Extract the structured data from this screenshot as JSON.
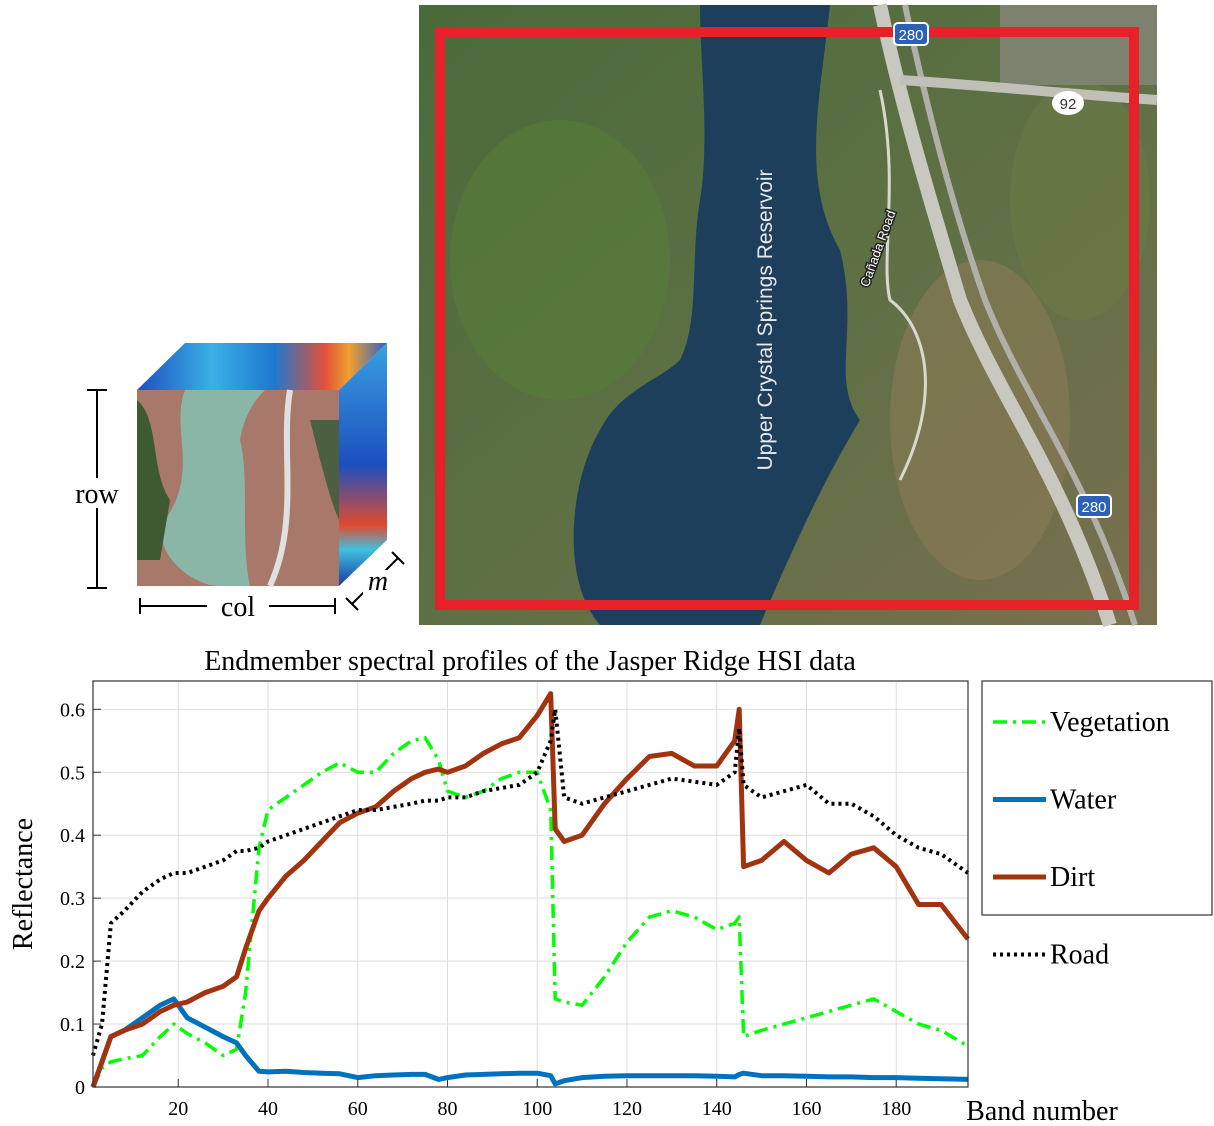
{
  "hsi_cube": {
    "row_label": "row",
    "col_label": "col",
    "band_label": "m"
  },
  "map": {
    "reservoir_label": "Upper Crystal Springs Reservoir",
    "road_label": "Cañada Road",
    "highway_labels": [
      "280",
      "92",
      "280"
    ]
  },
  "chart_data": {
    "type": "line",
    "title": "Endmember spectral profiles of the Jasper Ridge HSI data",
    "x_label": "Band number",
    "y_label": "Reflectance",
    "x": [
      1,
      3,
      5,
      8,
      12,
      16,
      19,
      22,
      26,
      30,
      33,
      35,
      38,
      40,
      44,
      48,
      52,
      56,
      60,
      64,
      68,
      72,
      75,
      78,
      80,
      84,
      88,
      92,
      96,
      100,
      103,
      104,
      106,
      110,
      115,
      120,
      125,
      130,
      135,
      140,
      144,
      145,
      146,
      150,
      155,
      160,
      165,
      170,
      175,
      180,
      185,
      190,
      196
    ],
    "series": [
      {
        "name": "Vegetation",
        "color": "#00ff00",
        "linestyle": "dashdot",
        "values": [
          0.0,
          0.03,
          0.04,
          0.045,
          0.05,
          0.08,
          0.1,
          0.085,
          0.07,
          0.05,
          0.06,
          0.15,
          0.38,
          0.44,
          0.46,
          0.48,
          0.5,
          0.515,
          0.5,
          0.5,
          0.53,
          0.55,
          0.555,
          0.52,
          0.47,
          0.46,
          0.47,
          0.49,
          0.5,
          0.5,
          0.44,
          0.14,
          0.135,
          0.13,
          0.175,
          0.23,
          0.27,
          0.28,
          0.27,
          0.25,
          0.26,
          0.27,
          0.08,
          0.09,
          0.1,
          0.11,
          0.12,
          0.13,
          0.14,
          0.12,
          0.1,
          0.09,
          0.065
        ]
      },
      {
        "name": "Water",
        "color": "#0072bd",
        "linestyle": "solid",
        "values": [
          0.0,
          0.04,
          0.08,
          0.09,
          0.11,
          0.13,
          0.14,
          0.11,
          0.095,
          0.08,
          0.07,
          0.05,
          0.025,
          0.024,
          0.025,
          0.023,
          0.022,
          0.021,
          0.015,
          0.018,
          0.019,
          0.02,
          0.02,
          0.012,
          0.015,
          0.019,
          0.02,
          0.021,
          0.022,
          0.022,
          0.018,
          0.005,
          0.01,
          0.015,
          0.017,
          0.018,
          0.018,
          0.018,
          0.018,
          0.017,
          0.016,
          0.02,
          0.022,
          0.018,
          0.018,
          0.017,
          0.016,
          0.016,
          0.015,
          0.015,
          0.014,
          0.013,
          0.012
        ]
      },
      {
        "name": "Dirt",
        "color": "#a2330f",
        "linestyle": "solid",
        "values": [
          0.0,
          0.04,
          0.08,
          0.09,
          0.1,
          0.12,
          0.13,
          0.135,
          0.15,
          0.16,
          0.175,
          0.22,
          0.28,
          0.3,
          0.335,
          0.36,
          0.39,
          0.42,
          0.435,
          0.445,
          0.47,
          0.49,
          0.5,
          0.505,
          0.5,
          0.51,
          0.53,
          0.545,
          0.555,
          0.59,
          0.625,
          0.41,
          0.39,
          0.4,
          0.45,
          0.49,
          0.525,
          0.53,
          0.51,
          0.51,
          0.55,
          0.6,
          0.35,
          0.36,
          0.39,
          0.36,
          0.34,
          0.37,
          0.38,
          0.35,
          0.29,
          0.29,
          0.235
        ]
      },
      {
        "name": "Road",
        "color": "#000000",
        "linestyle": "dotted",
        "values": [
          0.05,
          0.1,
          0.26,
          0.28,
          0.31,
          0.33,
          0.34,
          0.34,
          0.35,
          0.36,
          0.375,
          0.375,
          0.38,
          0.39,
          0.4,
          0.41,
          0.42,
          0.43,
          0.44,
          0.44,
          0.445,
          0.45,
          0.455,
          0.455,
          0.46,
          0.46,
          0.47,
          0.475,
          0.48,
          0.5,
          0.55,
          0.6,
          0.46,
          0.45,
          0.46,
          0.47,
          0.48,
          0.49,
          0.485,
          0.48,
          0.5,
          0.57,
          0.48,
          0.46,
          0.47,
          0.48,
          0.45,
          0.45,
          0.43,
          0.4,
          0.38,
          0.37,
          0.34
        ]
      }
    ],
    "xlim": [
      1,
      196
    ],
    "ylim": [
      0,
      0.645
    ],
    "xticks": [
      20,
      40,
      60,
      80,
      100,
      120,
      140,
      160,
      180
    ],
    "yticks": [
      0,
      0.1,
      0.2,
      0.3,
      0.4,
      0.5,
      0.6
    ],
    "grid": true,
    "legend": "outside-right"
  }
}
